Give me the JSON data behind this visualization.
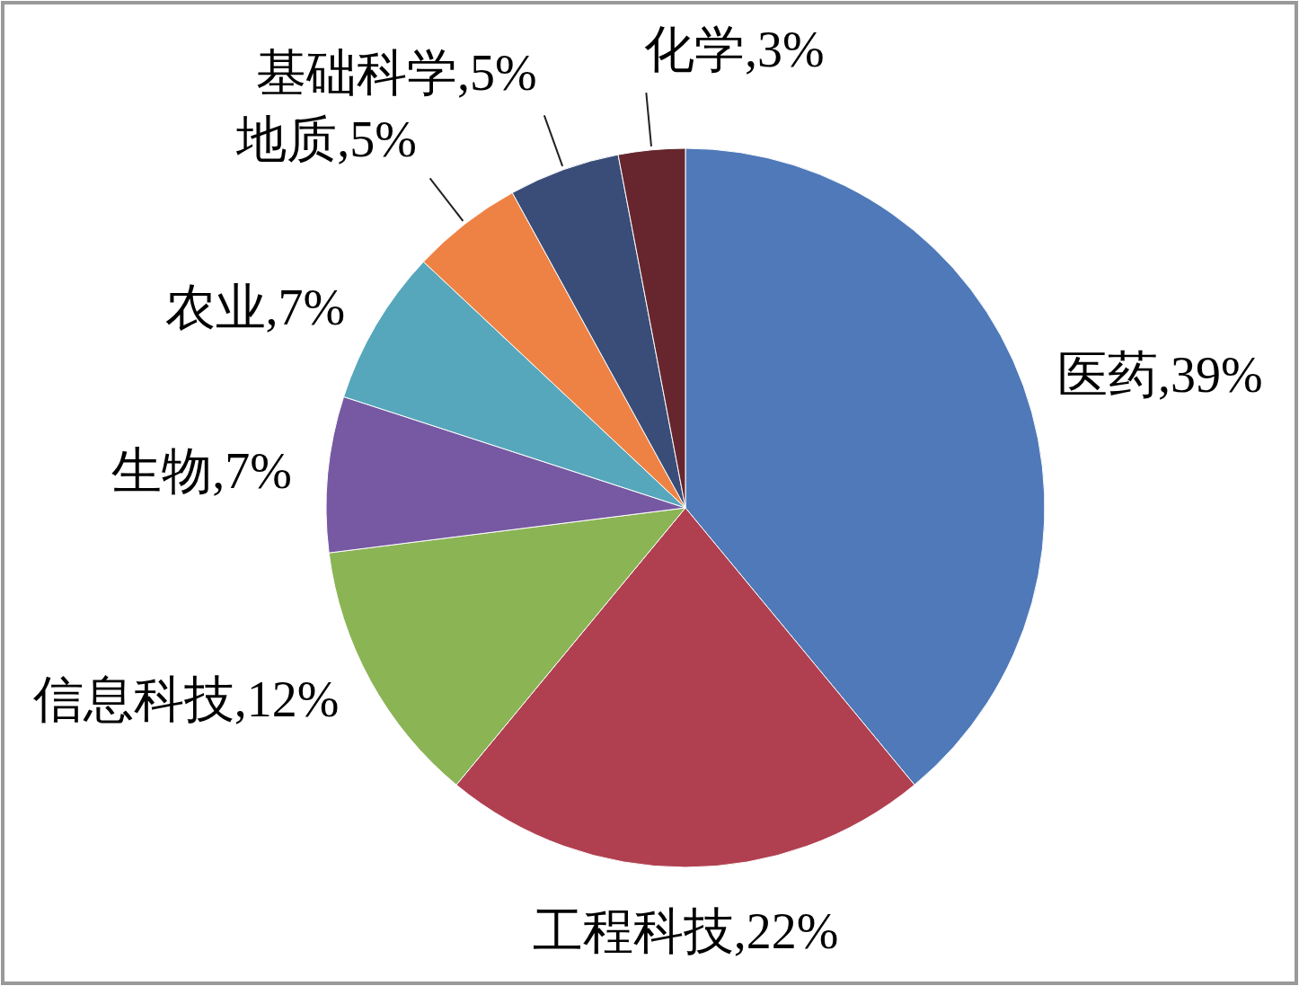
{
  "chart_data": {
    "type": "pie",
    "categories": [
      "医药",
      "工程科技",
      "信息科技",
      "生物",
      "农业",
      "地质",
      "基础科学",
      "化学"
    ],
    "values": [
      39,
      22,
      12,
      7,
      7,
      5,
      5,
      3
    ],
    "value_labels": [
      "39%",
      "22%",
      "12%",
      "7%",
      "7%",
      "5%",
      "5%",
      "3%"
    ],
    "colors": [
      "#4f79b8",
      "#b04050",
      "#8bb455",
      "#7659a2",
      "#56a7bb",
      "#ee8244",
      "#394d78",
      "#67262d"
    ]
  }
}
